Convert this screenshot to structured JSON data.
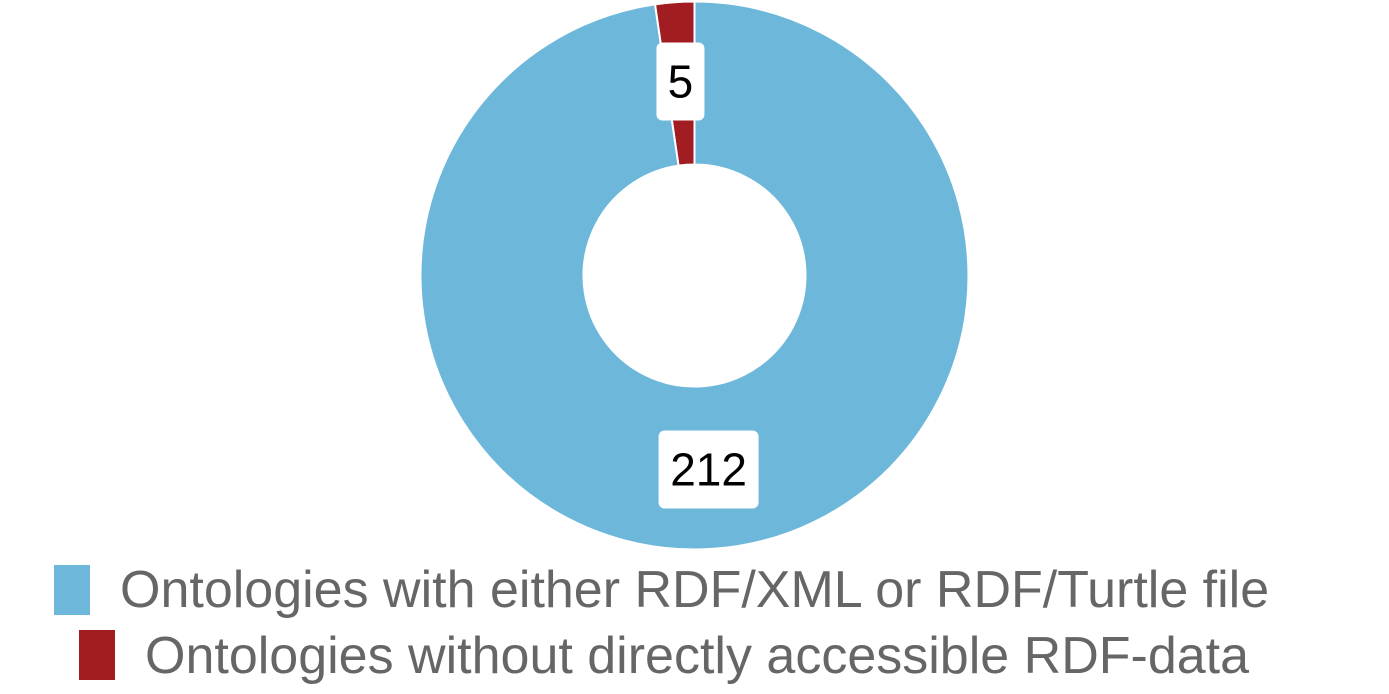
{
  "chart_data": {
    "type": "pie",
    "donut": true,
    "title": "",
    "start_direction": "top",
    "slice_order": "counter-clockwise",
    "data_labels": true,
    "legend_position": "bottom",
    "categories": [
      "Ontologies without directly accessible RDF-data",
      "Ontologies with either RDF/XML or RDF/Turtle file"
    ],
    "values": [
      5,
      212
    ],
    "colors": [
      "#a11d21",
      "#6db8da"
    ],
    "legend": [
      {
        "label": "Ontologies with either RDF/XML or RDF/Turtle file",
        "color": "#6db8da"
      },
      {
        "label": "Ontologies without directly accessible RDF-data",
        "color": "#a11d21"
      }
    ]
  }
}
